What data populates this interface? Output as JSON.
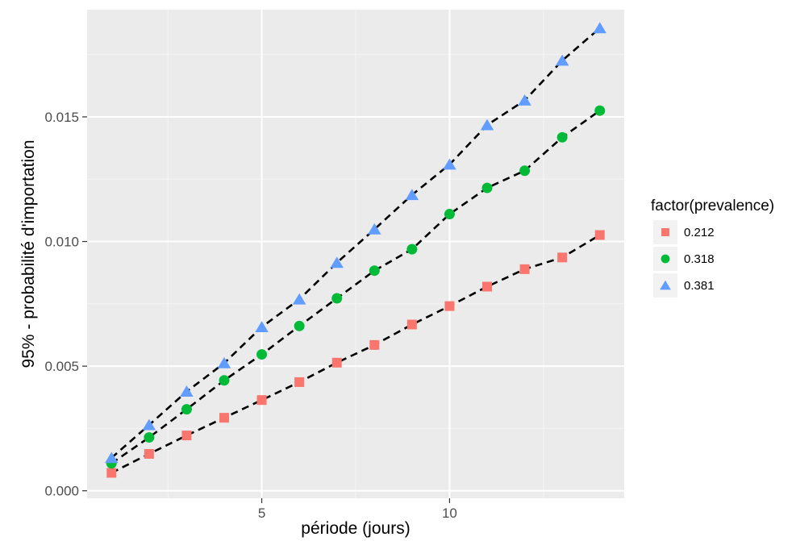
{
  "chart_data": {
    "type": "scatter",
    "title": "",
    "xlabel": "période (jours)",
    "ylabel": "95% - probabilité d'importation",
    "xlim": [
      0.35,
      14.65
    ],
    "ylim": [
      -0.0003,
      0.0193
    ],
    "x_ticks": [
      5,
      10
    ],
    "x_tick_labels": [
      "5",
      "10"
    ],
    "x_minor_ticks": [
      2.5,
      7.5,
      12.5
    ],
    "y_ticks": [
      0.0,
      0.005,
      0.01,
      0.015
    ],
    "y_tick_labels": [
      "0.000",
      "0.005",
      "0.010",
      "0.015"
    ],
    "y_minor_ticks": [
      0.0025,
      0.0075,
      0.0125,
      0.0175
    ],
    "grid": true,
    "trend_lines": "dashed black line through each series",
    "legend": {
      "title": "factor(prevalence)",
      "placement": "right"
    },
    "x": [
      1,
      2,
      3,
      4,
      5,
      6,
      7,
      8,
      9,
      10,
      11,
      12,
      13,
      14
    ],
    "series": [
      {
        "name": "0.212",
        "marker": "square",
        "color": "#F8766D",
        "values": [
          0.00072,
          0.00148,
          0.00222,
          0.00293,
          0.00364,
          0.00436,
          0.00514,
          0.00585,
          0.00667,
          0.00741,
          0.00819,
          0.00889,
          0.00936,
          0.01026
        ]
      },
      {
        "name": "0.318",
        "marker": "circle",
        "color": "#00BA38",
        "values": [
          0.0011,
          0.00214,
          0.00327,
          0.00443,
          0.00547,
          0.00661,
          0.00772,
          0.00883,
          0.00969,
          0.0111,
          0.01215,
          0.01284,
          0.01418,
          0.01525
        ]
      },
      {
        "name": "0.381",
        "marker": "triangle",
        "color": "#619CFF",
        "values": [
          0.00132,
          0.00264,
          0.00398,
          0.00512,
          0.00657,
          0.00768,
          0.00915,
          0.01049,
          0.01187,
          0.01309,
          0.01467,
          0.01566,
          0.01726,
          0.01856
        ]
      }
    ]
  }
}
